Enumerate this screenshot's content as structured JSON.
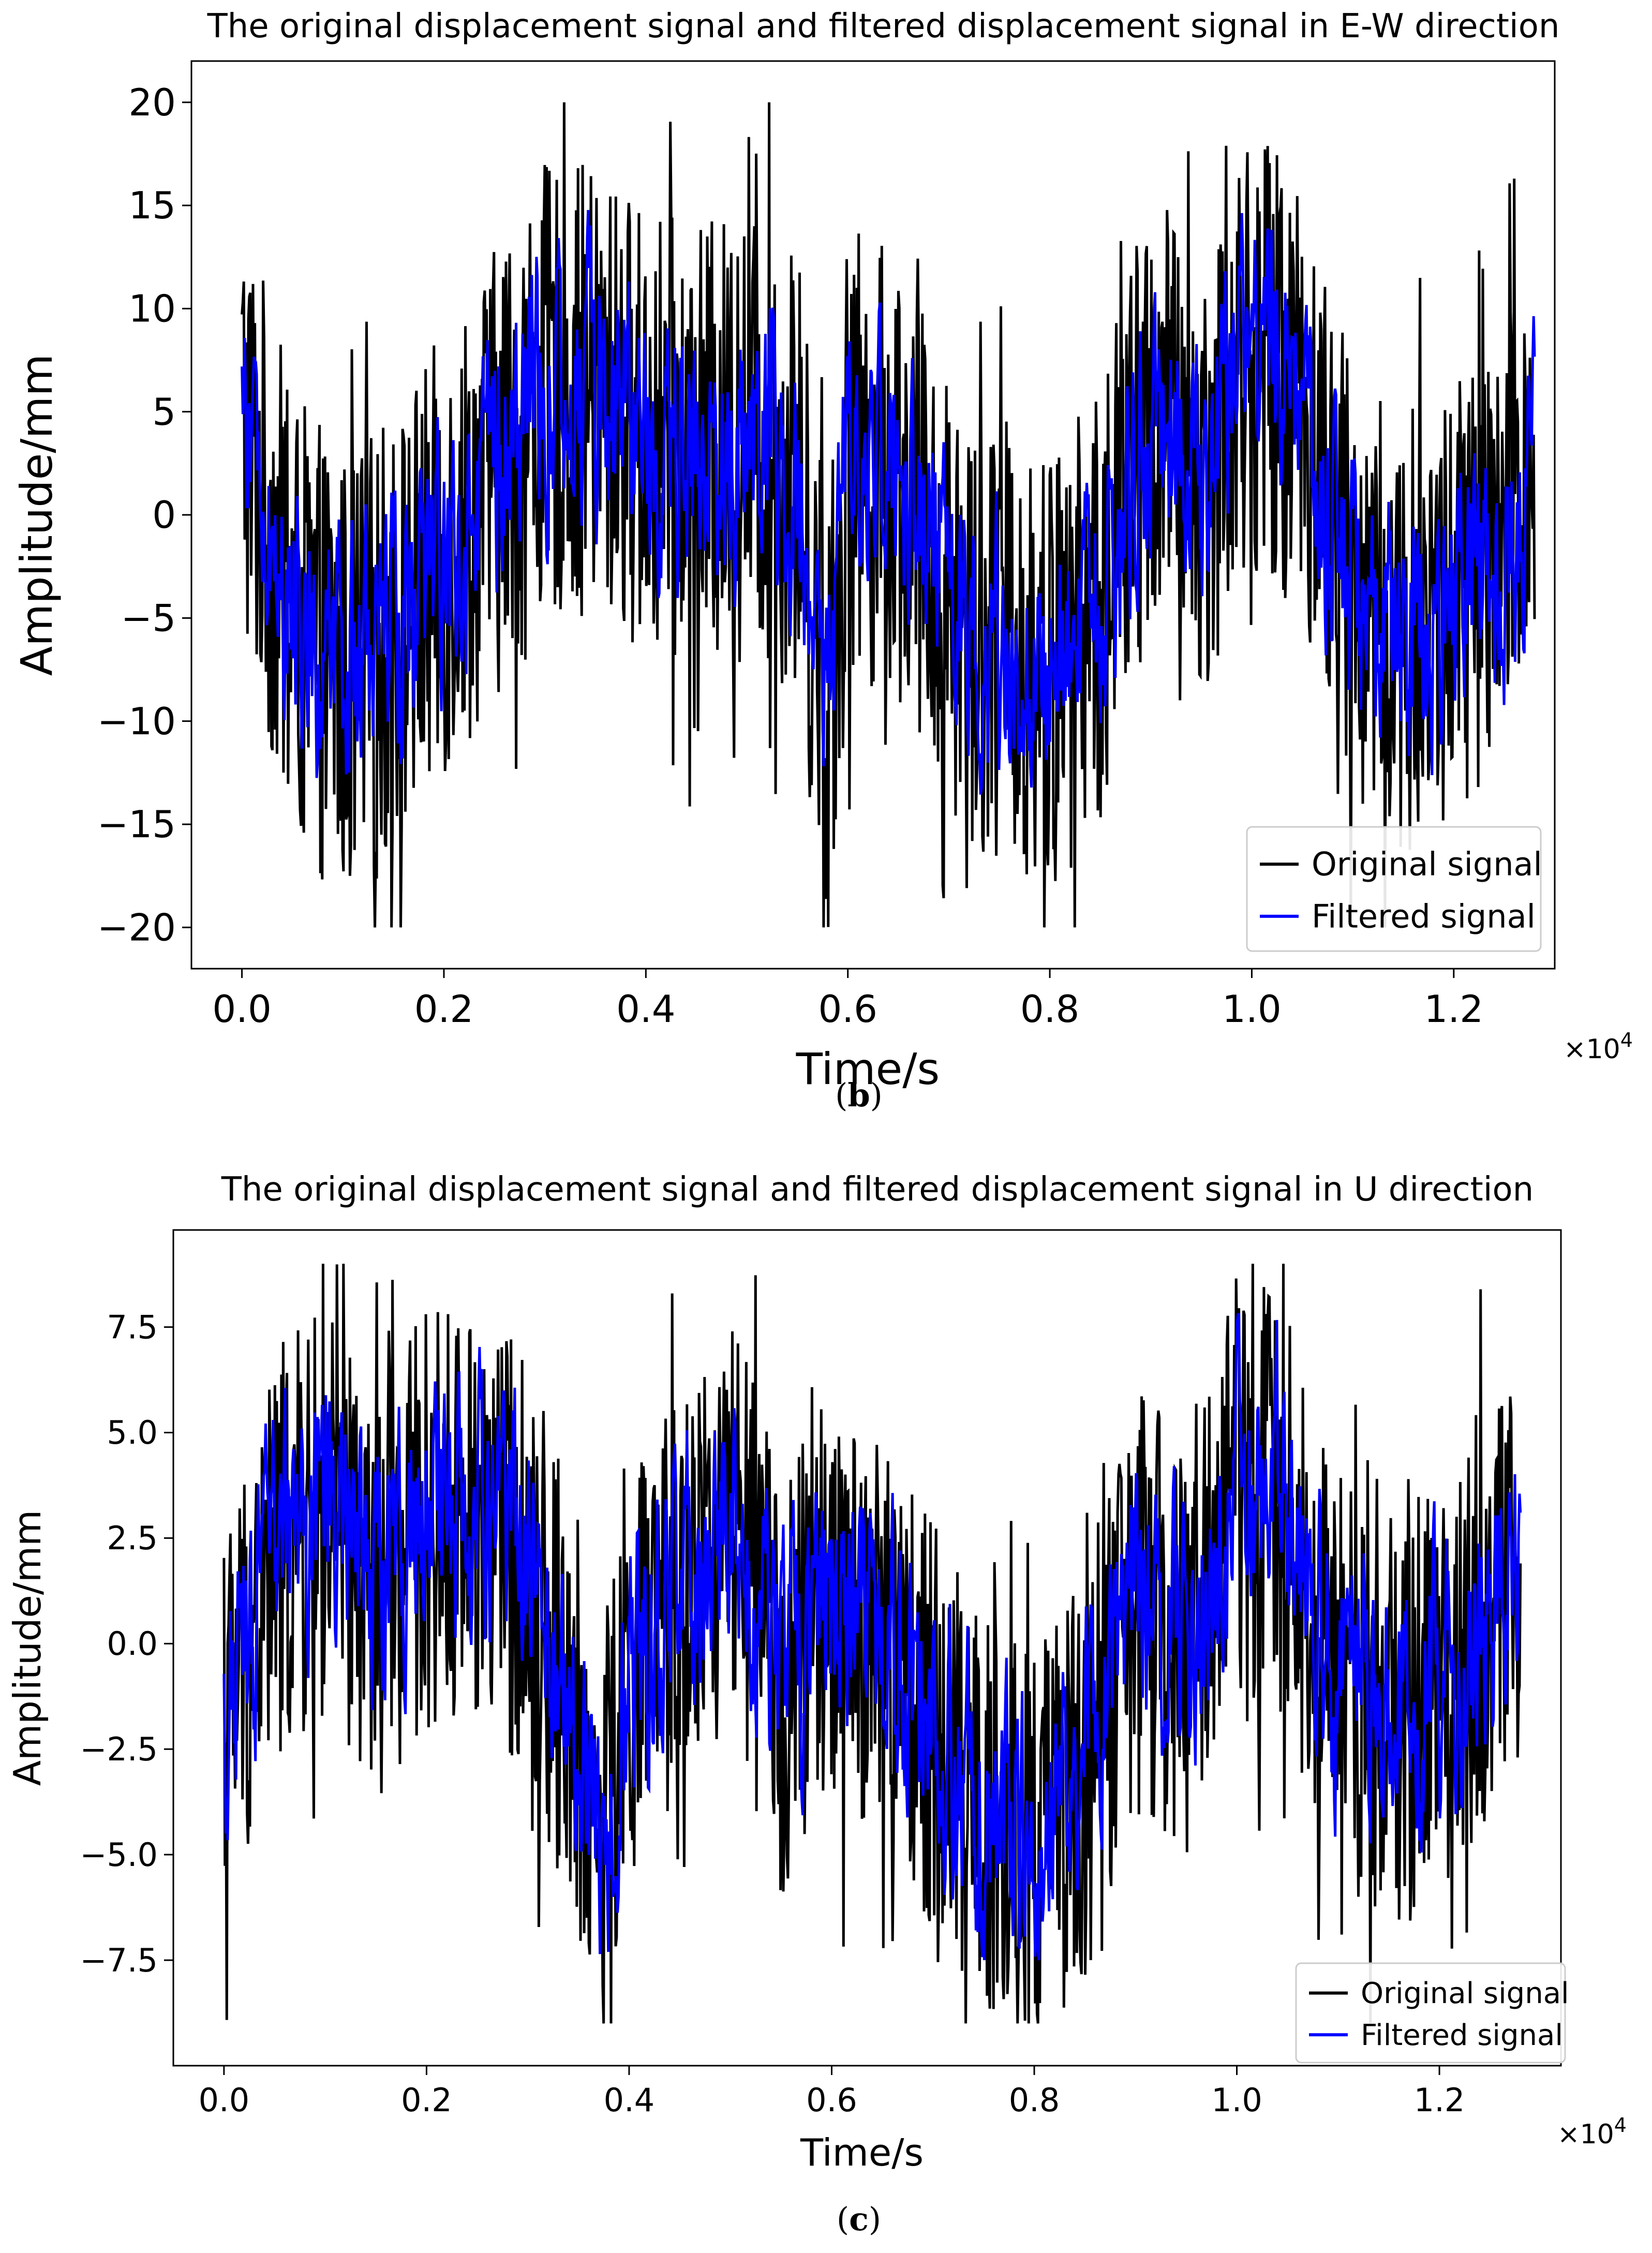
{
  "chart_data": [
    {
      "id": "b",
      "type": "line",
      "title": "The original displacement signal and filtered displacement signal in E-W direction",
      "xlabel": "Time/s",
      "ylabel": "Amplitude/mm",
      "x_multiplier": "×10",
      "x_multiplier_exp": "4",
      "xlim": [
        -0.05,
        1.3
      ],
      "ylim": [
        -22,
        22
      ],
      "xticks": [
        0.0,
        0.2,
        0.4,
        0.6,
        0.8,
        1.0,
        1.2
      ],
      "xtick_labels": [
        "0.0",
        "0.2",
        "0.4",
        "0.6",
        "0.8",
        "1.0",
        "1.2"
      ],
      "yticks": [
        20,
        15,
        10,
        5,
        0,
        -5,
        -10,
        -15,
        -20
      ],
      "ytick_labels": [
        "20",
        "15",
        "10",
        "5",
        "0",
        "−5",
        "−10",
        "−15",
        "−20"
      ],
      "x_range": [
        0.0,
        1.28
      ],
      "series": [
        {
          "name": "Original signal",
          "color": "#000000",
          "envelope_x": [
            0.0,
            0.05,
            0.1,
            0.15,
            0.2,
            0.25,
            0.3,
            0.35,
            0.4,
            0.45,
            0.5,
            0.55,
            0.58,
            0.6,
            0.65,
            0.7,
            0.75,
            0.8,
            0.85,
            0.9,
            0.95,
            1.0,
            1.05,
            1.1,
            1.15,
            1.2,
            1.25,
            1.28
          ],
          "envelope_center": [
            5,
            -5,
            -8,
            -6,
            -2,
            2,
            6,
            6,
            4,
            3,
            4,
            2,
            -10,
            3,
            2,
            -4,
            -6,
            -8,
            -4,
            5,
            2,
            8,
            6,
            -4,
            -6,
            -4,
            -2,
            4
          ],
          "envelope_amp": 11,
          "ylim_clip": [
            -20,
            20
          ]
        },
        {
          "name": "Filtered signal",
          "color": "#0000ff",
          "envelope_x": [
            0.0,
            0.05,
            0.1,
            0.15,
            0.2,
            0.25,
            0.3,
            0.35,
            0.4,
            0.45,
            0.5,
            0.55,
            0.58,
            0.6,
            0.65,
            0.7,
            0.75,
            0.8,
            0.85,
            0.9,
            0.95,
            1.0,
            1.05,
            1.1,
            1.15,
            1.2,
            1.25,
            1.28
          ],
          "envelope_center": [
            5,
            -5,
            -8,
            -6,
            -2,
            2,
            6,
            6,
            4,
            3,
            4,
            2,
            -10,
            3,
            2,
            -4,
            -6,
            -8,
            -4,
            5,
            2,
            8,
            6,
            -4,
            -6,
            -4,
            -2,
            4
          ],
          "envelope_amp": 5,
          "ylim_clip": [
            -17,
            17
          ]
        }
      ],
      "legend": {
        "placement": "lower-right",
        "entries": [
          "Original signal",
          "Filtered signal"
        ]
      },
      "caption_label": "b"
    },
    {
      "id": "c",
      "type": "line",
      "title": "The original displacement signal and filtered displacement signal in U direction",
      "xlabel": "Time/s",
      "ylabel": "Amplitude/mm",
      "x_multiplier": "×10",
      "x_multiplier_exp": "4",
      "xlim": [
        -0.05,
        1.32
      ],
      "ylim": [
        -10,
        9.8
      ],
      "xticks": [
        0.0,
        0.2,
        0.4,
        0.6,
        0.8,
        1.0,
        1.2
      ],
      "xtick_labels": [
        "0.0",
        "0.2",
        "0.4",
        "0.6",
        "0.8",
        "1.0",
        "1.2"
      ],
      "yticks": [
        7.5,
        5.0,
        2.5,
        0.0,
        -2.5,
        -5.0,
        -7.5
      ],
      "ytick_labels": [
        "7.5",
        "5.0",
        "2.5",
        "0.0",
        "−2.5",
        "−5.0",
        "−7.5"
      ],
      "x_range": [
        0.0,
        1.28
      ],
      "series": [
        {
          "name": "Original signal",
          "color": "#000000",
          "envelope_x": [
            0.0,
            0.05,
            0.1,
            0.15,
            0.2,
            0.25,
            0.3,
            0.35,
            0.37,
            0.4,
            0.45,
            0.5,
            0.55,
            0.6,
            0.65,
            0.7,
            0.75,
            0.8,
            0.85,
            0.9,
            0.95,
            1.0,
            1.05,
            1.1,
            1.15,
            1.2,
            1.25,
            1.28
          ],
          "envelope_center": [
            -2,
            2,
            3,
            1,
            3,
            3,
            2,
            -2,
            -5,
            -1,
            1,
            3,
            -1,
            1,
            0,
            -2,
            -4,
            -5,
            -3,
            1,
            0,
            4,
            3,
            -1,
            -2,
            -1,
            1,
            2
          ],
          "envelope_amp": 5,
          "ylim_clip": [
            -9,
            9
          ]
        },
        {
          "name": "Filtered signal",
          "color": "#0000ff",
          "envelope_x": [
            0.0,
            0.05,
            0.1,
            0.15,
            0.2,
            0.25,
            0.3,
            0.35,
            0.37,
            0.4,
            0.45,
            0.5,
            0.55,
            0.6,
            0.65,
            0.7,
            0.75,
            0.8,
            0.85,
            0.9,
            0.95,
            1.0,
            1.05,
            1.1,
            1.15,
            1.2,
            1.25,
            1.28
          ],
          "envelope_center": [
            -2,
            2,
            3,
            1,
            3,
            3,
            2,
            -2,
            -5,
            -1,
            1,
            3,
            -1,
            1,
            0,
            -2,
            -4,
            -5,
            -3,
            1,
            0,
            4,
            3,
            -1,
            -2,
            -1,
            1,
            2
          ],
          "envelope_amp": 2.5,
          "ylim_clip": [
            -7.5,
            7.8
          ]
        }
      ],
      "legend": {
        "placement": "lower-right",
        "entries": [
          "Original signal",
          "Filtered signal"
        ]
      },
      "caption_label": "c"
    }
  ]
}
